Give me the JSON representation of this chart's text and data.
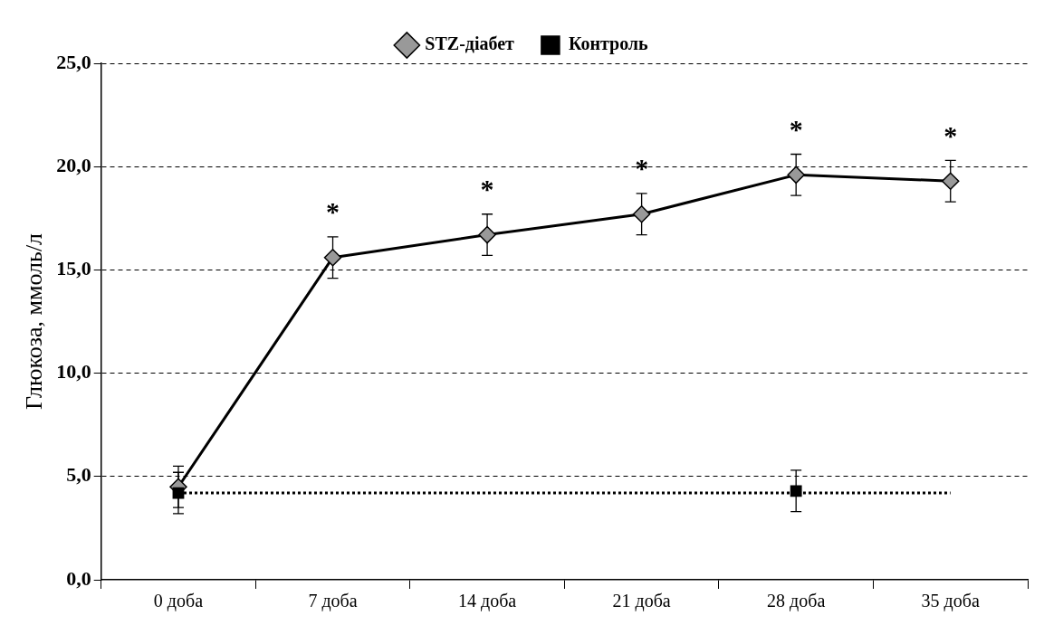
{
  "chart_data": {
    "type": "line",
    "ylabel": "Глюкоза, ммоль/л",
    "categories": [
      "0 доба",
      "7 доба",
      "14 доба",
      "21 доба",
      "28 доба",
      "35 доба"
    ],
    "series": [
      {
        "name": "STZ-діабет",
        "color": "#999999",
        "marker": "diamond",
        "line_style": "solid",
        "values": [
          4.5,
          15.6,
          16.7,
          17.7,
          19.6,
          19.3
        ],
        "errors": [
          1.0,
          1.0,
          1.0,
          1.0,
          1.0,
          1.0
        ]
      },
      {
        "name": "Контроль",
        "type": "scatter",
        "color": "#000000",
        "marker": "square",
        "values": [
          4.2,
          null,
          null,
          null,
          4.3,
          null
        ],
        "errors": [
          1.0,
          null,
          null,
          null,
          1.0,
          null
        ]
      },
      {
        "type": "line",
        "color": "#000000",
        "marker": "none",
        "line_style": "dotted",
        "values": [
          4.2,
          4.2,
          4.2,
          4.2,
          4.2,
          4.2
        ]
      }
    ],
    "ylim": [
      0,
      25
    ],
    "yticks": [
      {
        "value": 0,
        "label": "0,0"
      },
      {
        "value": 5,
        "label": "5,0"
      },
      {
        "value": 10,
        "label": "10,0"
      },
      {
        "value": 15,
        "label": "15,0"
      },
      {
        "value": 20,
        "label": "20,0"
      },
      {
        "value": 25,
        "label": "25,0"
      }
    ],
    "grid": "y",
    "legend": "top",
    "annotations": [
      {
        "text": "*",
        "x": "7 доба",
        "y": 15.6
      },
      {
        "text": "*",
        "x": "14 доба",
        "y": 16.7
      },
      {
        "text": "*",
        "x": "21 доба",
        "y": 17.7
      },
      {
        "text": "*",
        "x": "28 доба",
        "y": 19.6
      },
      {
        "text": "*",
        "x": "35 доба",
        "y": 19.3
      }
    ]
  }
}
